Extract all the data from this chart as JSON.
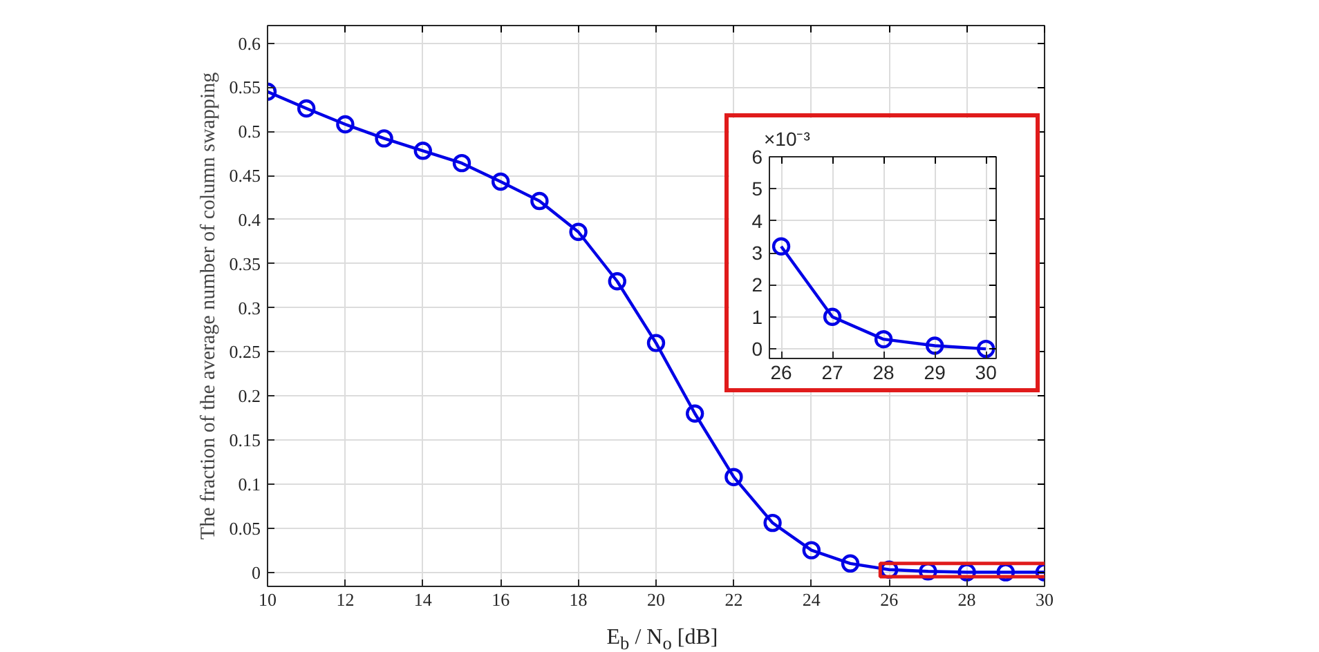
{
  "chart_data": [
    {
      "type": "line",
      "xlabel": "E$_{b}$ / N$_{o}$ [dB]",
      "ylabel": "The fraction of the average number of column swapping",
      "x": [
        10,
        11,
        12,
        13,
        14,
        15,
        16,
        17,
        18,
        19,
        20,
        21,
        22,
        23,
        24,
        25,
        26,
        27,
        28,
        29,
        30
      ],
      "series": [
        {
          "color": "#0000e6",
          "values": [
            0.545,
            0.526,
            0.508,
            0.492,
            0.478,
            0.464,
            0.443,
            0.421,
            0.386,
            0.33,
            0.26,
            0.18,
            0.108,
            0.056,
            0.025,
            0.01,
            0.003,
            0.001,
            0,
            0,
            0
          ]
        }
      ],
      "xlim": [
        10,
        30
      ],
      "ylim": [
        -0.016,
        0.62
      ],
      "xticks": [
        10,
        12,
        14,
        16,
        18,
        20,
        22,
        24,
        26,
        28,
        30
      ],
      "yticks": [
        0,
        0.05,
        0.1,
        0.15,
        0.2,
        0.25,
        0.3,
        0.35,
        0.4,
        0.45,
        0.5,
        0.55,
        0.6
      ],
      "grid": true,
      "marker": "circle",
      "line_style": "solid"
    },
    {
      "type": "line",
      "annotations": [
        "×10⁻³"
      ],
      "x": [
        26,
        27,
        28,
        29,
        30
      ],
      "series": [
        {
          "color": "#0000e6",
          "values": [
            3.2,
            1.0,
            0.3,
            0.1,
            0.0
          ]
        }
      ],
      "xlim": [
        25.77,
        30.2
      ],
      "ylim": [
        -0.3,
        6
      ],
      "xticks": [
        26,
        27,
        28,
        29,
        30
      ],
      "yticks": [
        0,
        1,
        2,
        3,
        4,
        5,
        6
      ],
      "grid": true,
      "marker": "circle",
      "line_style": "solid"
    }
  ]
}
